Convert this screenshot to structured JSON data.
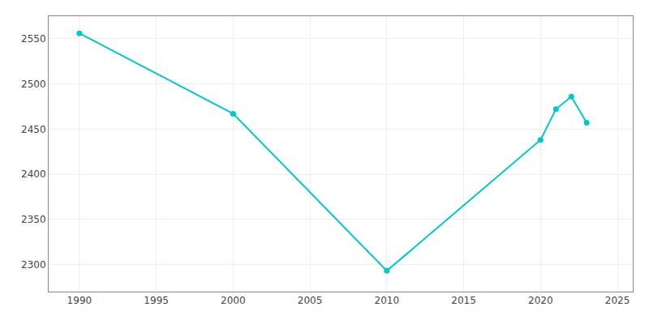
{
  "chart_data": {
    "type": "line",
    "x": [
      1990,
      2000,
      2010,
      2020,
      2021,
      2022,
      2023
    ],
    "values": [
      2556,
      2467,
      2293,
      2438,
      2472,
      2486,
      2457
    ],
    "color": "#00C8C8",
    "marker": "circle",
    "xlim": [
      1988,
      2026
    ],
    "xticks": [
      1990,
      1995,
      2000,
      2005,
      2010,
      2015,
      2020,
      2025
    ],
    "ylim": [
      2270,
      2575
    ],
    "yticks": [
      2300,
      2350,
      2400,
      2450,
      2500,
      2550
    ],
    "grid": true
  }
}
